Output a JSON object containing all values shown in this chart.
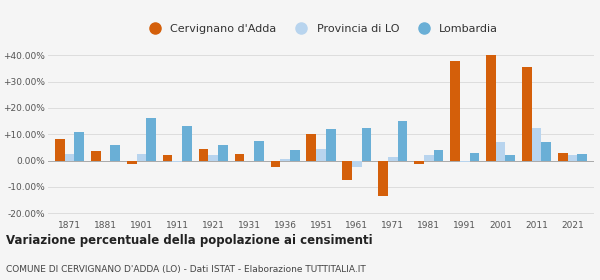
{
  "years": [
    1871,
    1881,
    1901,
    1911,
    1921,
    1931,
    1936,
    1951,
    1961,
    1971,
    1981,
    1991,
    2001,
    2011,
    2021
  ],
  "cervignano": [
    8.0,
    3.5,
    -1.5,
    2.0,
    4.5,
    2.5,
    -2.5,
    10.0,
    -7.5,
    -13.5,
    -1.5,
    38.0,
    40.0,
    35.5,
    3.0
  ],
  "provincia_lo": [
    2.5,
    0.0,
    2.5,
    -0.5,
    2.0,
    0.0,
    0.5,
    4.5,
    -2.5,
    1.5,
    2.0,
    -0.5,
    7.0,
    12.5,
    2.0
  ],
  "lombardia": [
    11.0,
    6.0,
    16.0,
    13.0,
    6.0,
    7.5,
    4.0,
    12.0,
    12.5,
    15.0,
    4.0,
    3.0,
    2.0,
    7.0,
    2.5
  ],
  "color_cervignano": "#d45f0a",
  "color_provincia": "#b8d4ee",
  "color_lombardia": "#6aafd6",
  "title": "Variazione percentuale della popolazione ai censimenti",
  "subtitle": "COMUNE DI CERVIGNANO D'ADDA (LO) - Dati ISTAT - Elaborazione TUTTITALIA.IT",
  "legend_cervignano": "Cervignano d'Adda",
  "legend_provincia": "Provincia di LO",
  "legend_lombardia": "Lombardia",
  "ylim": [
    -22,
    44
  ],
  "yticks": [
    -20,
    -10,
    0,
    10,
    20,
    30,
    40
  ],
  "bg_color": "#f5f5f5",
  "grid_color": "#dddddd"
}
